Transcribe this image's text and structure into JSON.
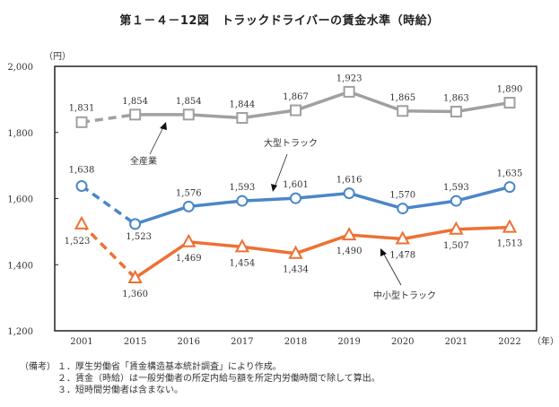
{
  "chart_data": {
    "type": "line",
    "title": "第１－４－12図　トラックドライバーの賃金水準（時給）",
    "ylabel": "（円）",
    "xlabel": "（年）",
    "categories": [
      "2001",
      "2015",
      "2016",
      "2017",
      "2018",
      "2019",
      "2020",
      "2021",
      "2022"
    ],
    "ylim": [
      1200,
      2000
    ],
    "yticks": [
      2000,
      1800,
      1600,
      1400,
      1200
    ],
    "ytick_labels": [
      "2,000",
      "1,800",
      "1,600",
      "1,400",
      "1,200"
    ],
    "grid": false,
    "dashed_first_segment": true,
    "series": [
      {
        "name": "全産業",
        "color": "#a0a0a0",
        "marker": "square",
        "values": [
          1831,
          1854,
          1854,
          1844,
          1867,
          1923,
          1865,
          1863,
          1890
        ],
        "labels": [
          "1,831",
          "1,854",
          "1,854",
          "1,844",
          "1,867",
          "1,923",
          "1,865",
          "1,863",
          "1,890"
        ],
        "label_position": "above"
      },
      {
        "name": "大型トラック",
        "color": "#4a86c8",
        "marker": "circle",
        "values": [
          1638,
          1523,
          1576,
          1593,
          1601,
          1616,
          1570,
          1593,
          1635
        ],
        "labels": [
          "1,638",
          "1,523",
          "1,576",
          "1,593",
          "1,601",
          "1,616",
          "1,570",
          "1,593",
          "1,635"
        ],
        "label_position": "above"
      },
      {
        "name": "中小型トラック",
        "color": "#ee7133",
        "marker": "triangle",
        "values": [
          1523,
          1360,
          1469,
          1454,
          1434,
          1490,
          1478,
          1507,
          1513
        ],
        "labels": [
          "1,523",
          "1,360",
          "1,469",
          "1,454",
          "1,434",
          "1,490",
          "1,478",
          "1,507",
          "1,513"
        ],
        "label_position": "below"
      }
    ],
    "annotations": [
      "全産業",
      "大型トラック",
      "中小型トラック"
    ]
  },
  "notes": {
    "head": "（備考）",
    "items": [
      "１．厚生労働省「賃金構造基本統計調査」により作成。",
      "２．賃金（時給）は一般労働者の所定内給与額を所定内労働時間で除して算出。",
      "３．短時間労働者は含まない。"
    ]
  }
}
